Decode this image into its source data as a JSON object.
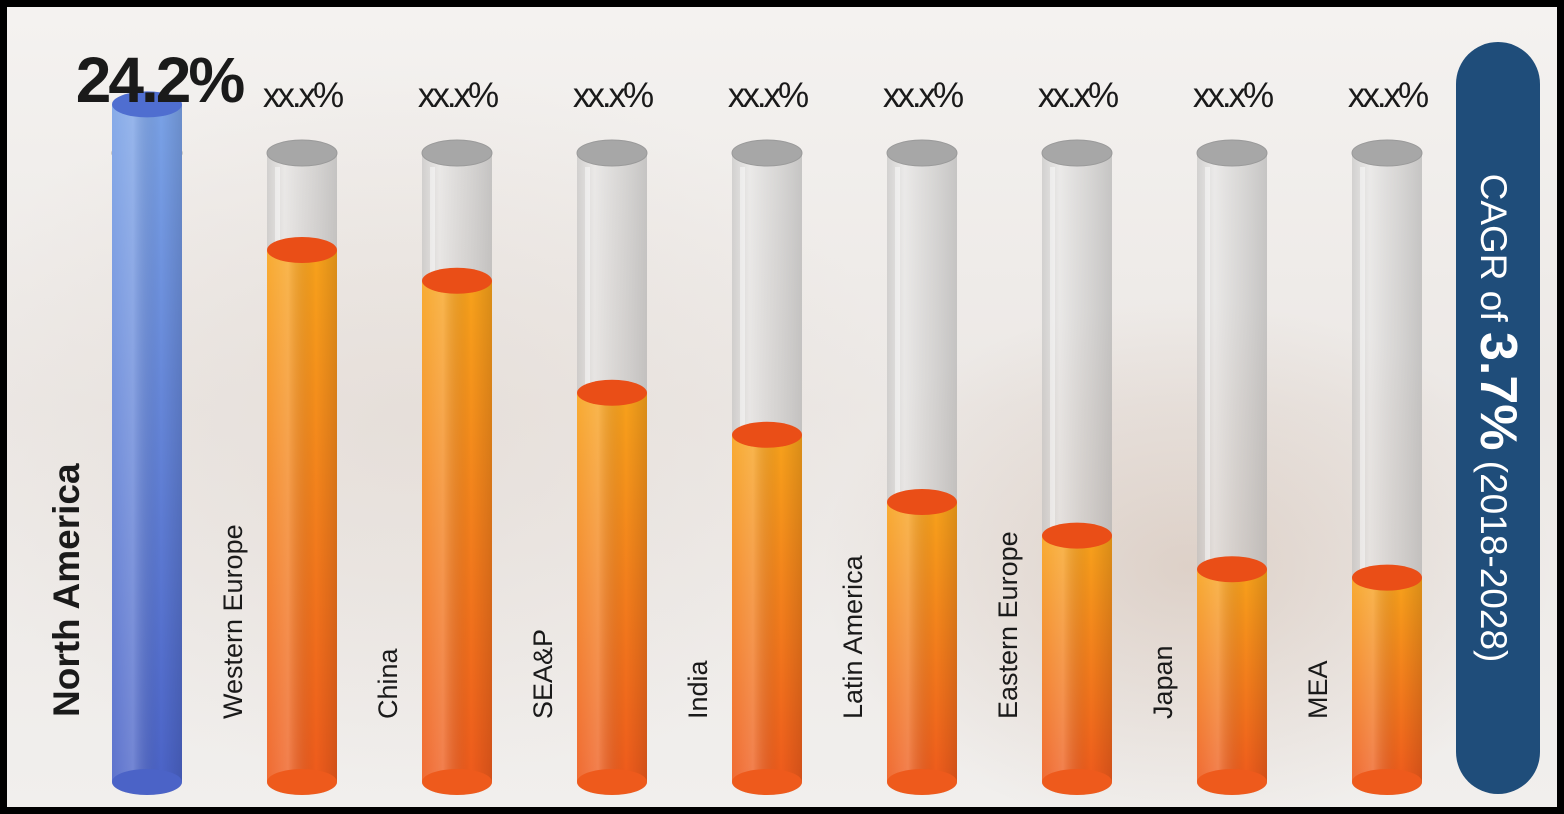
{
  "chart_data": {
    "type": "bar",
    "orientation": "vertical",
    "style": "test-tube cylinders",
    "categories": [
      "North America",
      "Western Europe",
      "China",
      "SEA&P",
      "India",
      "Latin America",
      "Eastern Europe",
      "Japan",
      "MEA"
    ],
    "values": [
      24.2,
      19.0,
      17.9,
      13.9,
      12.4,
      10.0,
      8.8,
      7.6,
      7.3
    ],
    "value_labels": [
      "24.2%",
      "xx.x%",
      "xx.x%",
      "xx.x%",
      "xx.x%",
      "xx.x%",
      "xx.x%",
      "xx.x%",
      "xx.x%"
    ],
    "highlight_index": 0,
    "ylim": [
      0,
      30
    ],
    "grid": false,
    "legend": "none",
    "colors": {
      "highlight": "#5578d0",
      "bar_top": "#f7a21b",
      "bar_bottom": "#ee5a1c",
      "tube": "#c8c8c8"
    }
  },
  "badge": {
    "prefix": "CAGR of",
    "value": "3.7%",
    "period": "(2018-2028)",
    "color": "#1f4d7a"
  }
}
